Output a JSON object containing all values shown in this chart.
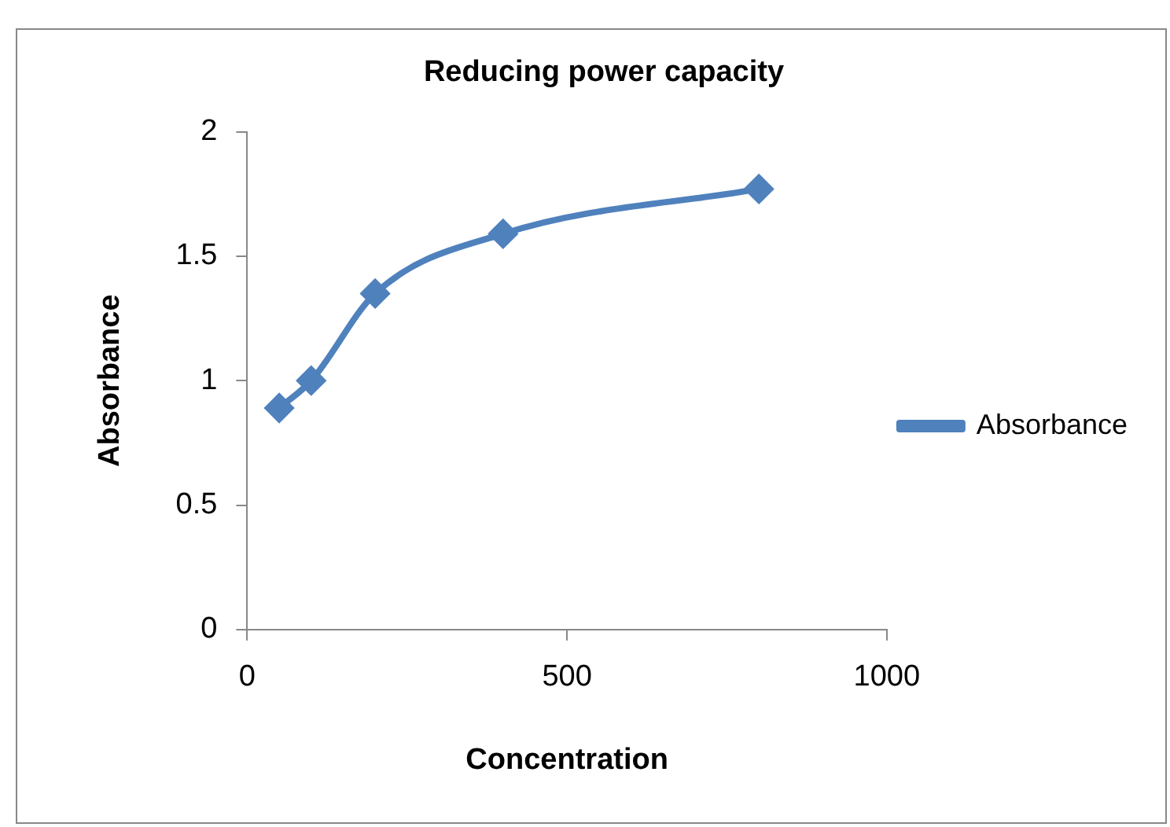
{
  "chart_data": {
    "type": "line",
    "title": "Reducing power capacity",
    "xlabel": "Concentration",
    "ylabel": "Absorbance",
    "x": [
      50,
      100,
      200,
      400,
      800
    ],
    "series": [
      {
        "name": "Absorbance",
        "color": "#4f81bd",
        "values": [
          0.89,
          1.0,
          1.35,
          1.59,
          1.77
        ]
      }
    ],
    "xlim": [
      0,
      1000
    ],
    "xticks": [
      0,
      500,
      1000
    ],
    "ylim": [
      0,
      2
    ],
    "yticks": [
      0,
      0.5,
      1,
      1.5,
      2
    ],
    "grid": false,
    "legend": "right",
    "marker": "diamond",
    "line_style": "solid"
  }
}
